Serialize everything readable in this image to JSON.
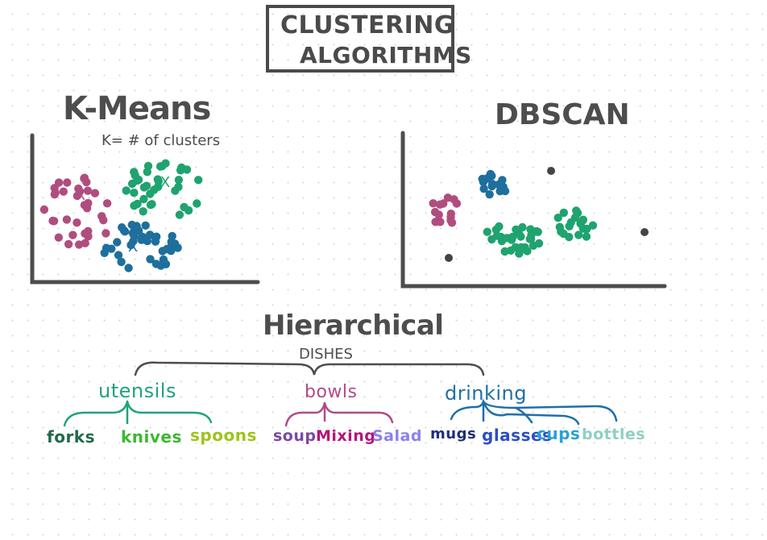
{
  "title": {
    "line1": "CLUSTERING",
    "line2": "ALGORITHMS"
  },
  "kmeans": {
    "title": "K-Means",
    "note": "K= # of clusters",
    "centroid_mark": "X"
  },
  "dbscan": {
    "title": "DBSCAN"
  },
  "hierarchical": {
    "title": "Hierarchical",
    "root": "DISHES",
    "groups": [
      {
        "label": "utensils",
        "color": "#1fa37b",
        "children": [
          {
            "label": "forks",
            "color": "#1f6b4a"
          },
          {
            "label": "knives",
            "color": "#3cb82f"
          },
          {
            "label": "spoons",
            "color": "#9ec41a"
          }
        ]
      },
      {
        "label": "bowls",
        "color": "#b34a87",
        "children": [
          {
            "label": "soup",
            "color": "#7a4aa0"
          },
          {
            "label": "Mixing",
            "color": "#b3157a"
          },
          {
            "label": "Salad",
            "color": "#8b7ff0"
          }
        ]
      },
      {
        "label": "drinking",
        "color": "#1f6fa8",
        "children": [
          {
            "label": "mugs",
            "color": "#1c2f7a"
          },
          {
            "label": "glasses",
            "color": "#2b4fc4"
          },
          {
            "label": "cups",
            "color": "#2aa0d8"
          },
          {
            "label": "bottles",
            "color": "#8fcfc4"
          }
        ]
      }
    ]
  },
  "colors": {
    "pink": "#b04d7f",
    "green": "#1fa36f",
    "blue": "#1e6f9c",
    "noise": "#444444",
    "ink": "#4d4d4d"
  }
}
